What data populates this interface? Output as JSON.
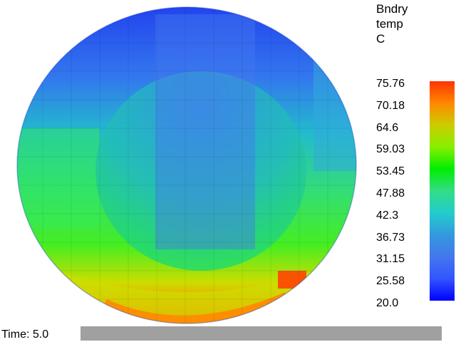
{
  "legend": {
    "title_lines": [
      "Bndry",
      "temp",
      "C"
    ],
    "ticks": [
      "75.76",
      "70.18",
      "64.6",
      "59.03",
      "53.45",
      "47.88",
      "42.3",
      "36.73",
      "31.15",
      "25.58",
      "20.0"
    ],
    "colormap": [
      "#ff3300",
      "#ff8800",
      "#cccc00",
      "#88ee00",
      "#00ee00",
      "#33dd88",
      "#22cccc",
      "#3399dd",
      "#4477ee",
      "#3355ff",
      "#0000ff"
    ]
  },
  "time": {
    "label": "Time: 5.0"
  },
  "slider": {
    "value": 1.0
  }
}
